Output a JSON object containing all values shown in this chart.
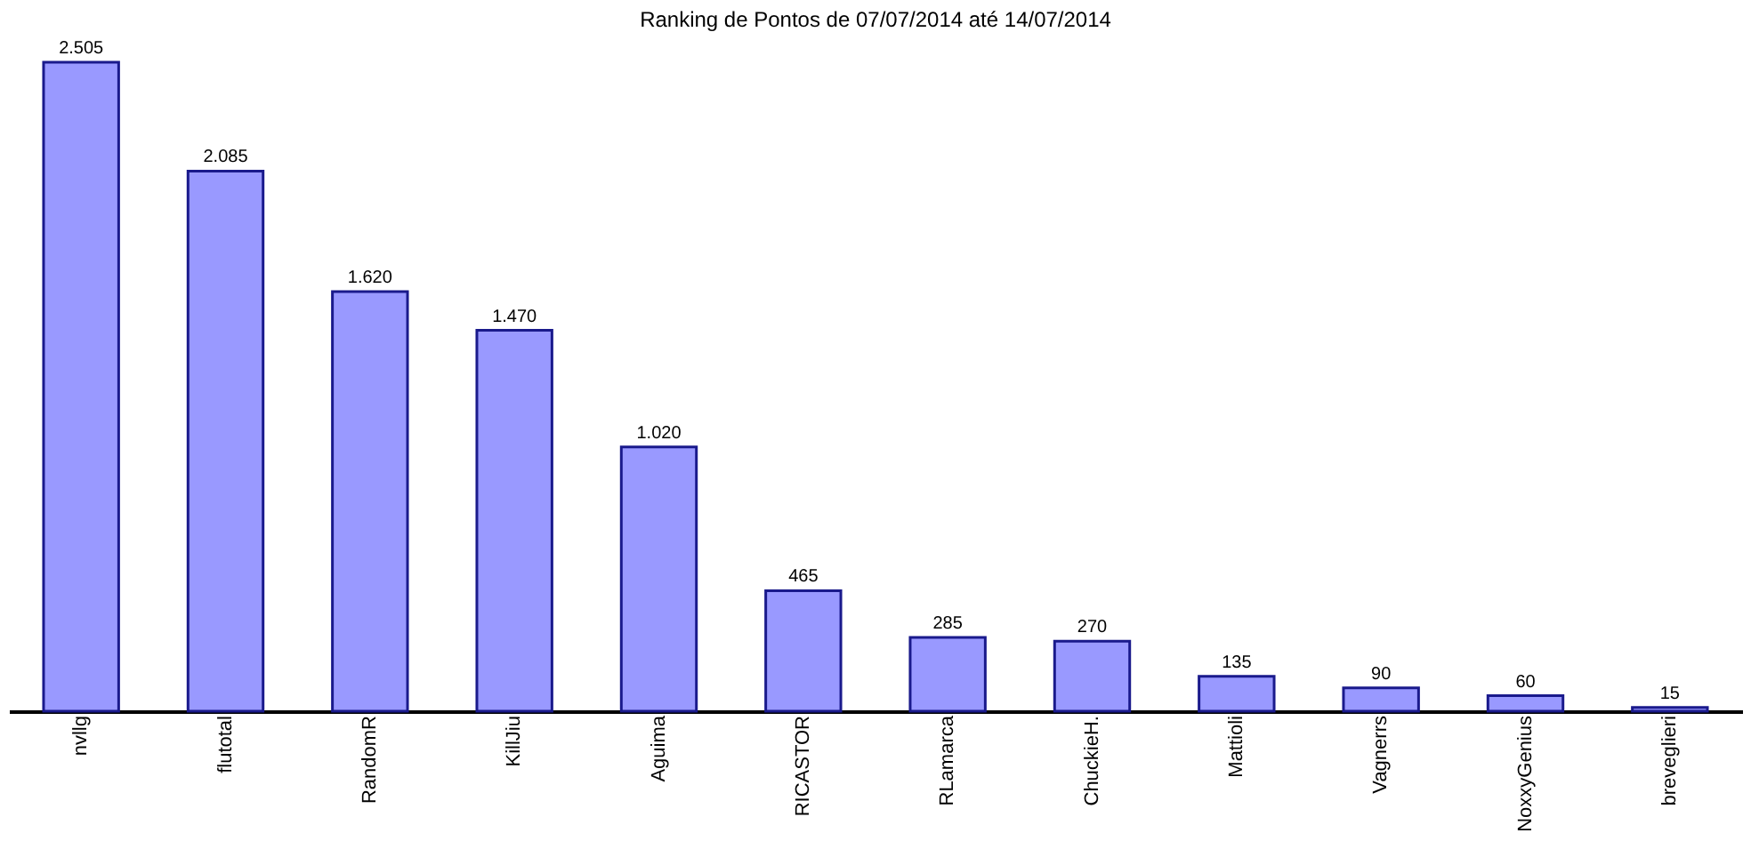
{
  "chart_data": {
    "type": "bar",
    "title": "Ranking de Pontos de 07/07/2014 até 14/07/2014",
    "categories": [
      "nvllg",
      "flutotal",
      "RandomR",
      "KillJiu",
      "Aguima",
      "RICASTOR",
      "RLamarca",
      "ChuckieH.",
      "Mattioli",
      "Vagnerrs",
      "NoxxyGenius",
      "breveglieri"
    ],
    "values": [
      2505,
      2085,
      1620,
      1470,
      1020,
      465,
      285,
      270,
      135,
      90,
      60,
      15
    ],
    "value_labels": [
      "2.505",
      "2.085",
      "1.620",
      "1.470",
      "1.020",
      "465",
      "285",
      "270",
      "135",
      "90",
      "60",
      "15"
    ],
    "color": "#9999ff"
  }
}
